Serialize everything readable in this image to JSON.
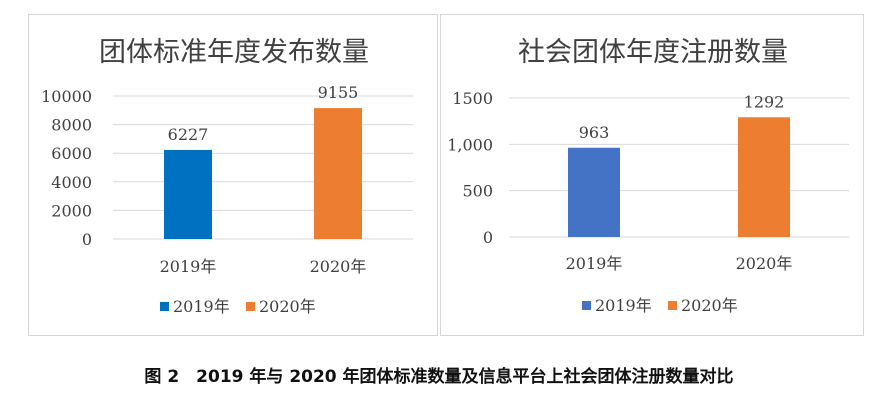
{
  "chart_data": [
    {
      "type": "bar",
      "title": "团体标准年度发布数量",
      "categories": [
        "2019年",
        "2020年"
      ],
      "series": [
        {
          "name": "2019年",
          "values": [
            6227,
            null
          ],
          "color": "#0070c0"
        },
        {
          "name": "2020年",
          "values": [
            null,
            9155
          ],
          "color": "#ed7d31"
        }
      ],
      "data_labels": [
        "6227",
        "9155"
      ],
      "yticks": [
        "0",
        "2000",
        "4000",
        "6000",
        "8000",
        "10000"
      ],
      "ylim": [
        0,
        10000
      ],
      "grid": true,
      "legend_position": "bottom"
    },
    {
      "type": "bar",
      "title": "社会团体年度注册数量",
      "categories": [
        "2019年",
        "2020年"
      ],
      "series": [
        {
          "name": "2019年",
          "values": [
            963,
            null
          ],
          "color": "#4472c4"
        },
        {
          "name": "2020年",
          "values": [
            null,
            1292
          ],
          "color": "#ed7d31"
        }
      ],
      "data_labels": [
        "963",
        "1292"
      ],
      "yticks": [
        "0",
        "500",
        "1,000",
        "1500"
      ],
      "ylim": [
        0,
        1500
      ],
      "grid": true,
      "legend_position": "bottom"
    }
  ],
  "caption": "图 2　2019 年与 2020 年团体标准数量及信息平台上社会团体注册数量对比"
}
